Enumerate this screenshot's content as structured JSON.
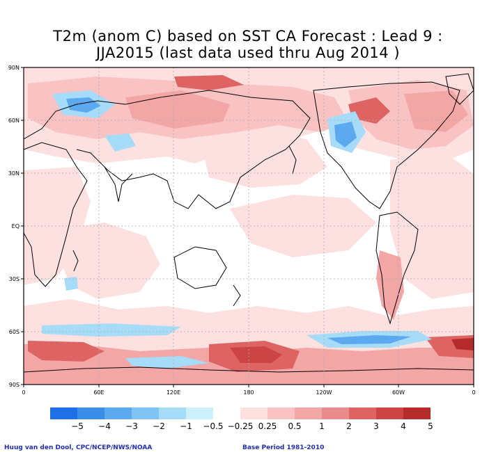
{
  "title_line1": "T2m (anom C) based on SST CA Forecast : Lead 9 :",
  "title_line2": "JJA2015 (last data used thru Aug 2014 )",
  "lat_labels": [
    "90N",
    "60N",
    "30N",
    "EQ",
    "30S",
    "60S",
    "90S"
  ],
  "lon_labels": [
    "0",
    "60E",
    "120E",
    "180",
    "120W",
    "60W",
    "0"
  ],
  "colorbar": {
    "colors": [
      "#1f6fe6",
      "#3b8ee8",
      "#5ca9ef",
      "#80c3f5",
      "#a6dcf8",
      "#ccf1fb",
      "#ffffff",
      "#fde0e0",
      "#f9c3c3",
      "#f3a6a6",
      "#eb8a8a",
      "#de6464",
      "#cc4444",
      "#b52a2a"
    ],
    "tick_labels": [
      "−5",
      "−4",
      "−3",
      "−2",
      "−1",
      "−0.5",
      "−0.25",
      "0.25",
      "0.5",
      "1",
      "2",
      "3",
      "4",
      "5"
    ]
  },
  "credit": "Huug van den Dool, CPC/NCEP/NWS/NOAA",
  "base_period": "Base Period 1981-2010",
  "colors": {
    "ocean_bg": "#ffffff",
    "light_red": "#fde0e0",
    "pink": "#f9c3c3",
    "salmon": "#f3a6a6",
    "red": "#de6464",
    "dark_red": "#cc4444",
    "light_blue": "#a6dcf8",
    "blue": "#5ca9ef",
    "coastline": "#000000",
    "grid": "#aaaaaa",
    "footer_text": "#1f2fb0"
  }
}
